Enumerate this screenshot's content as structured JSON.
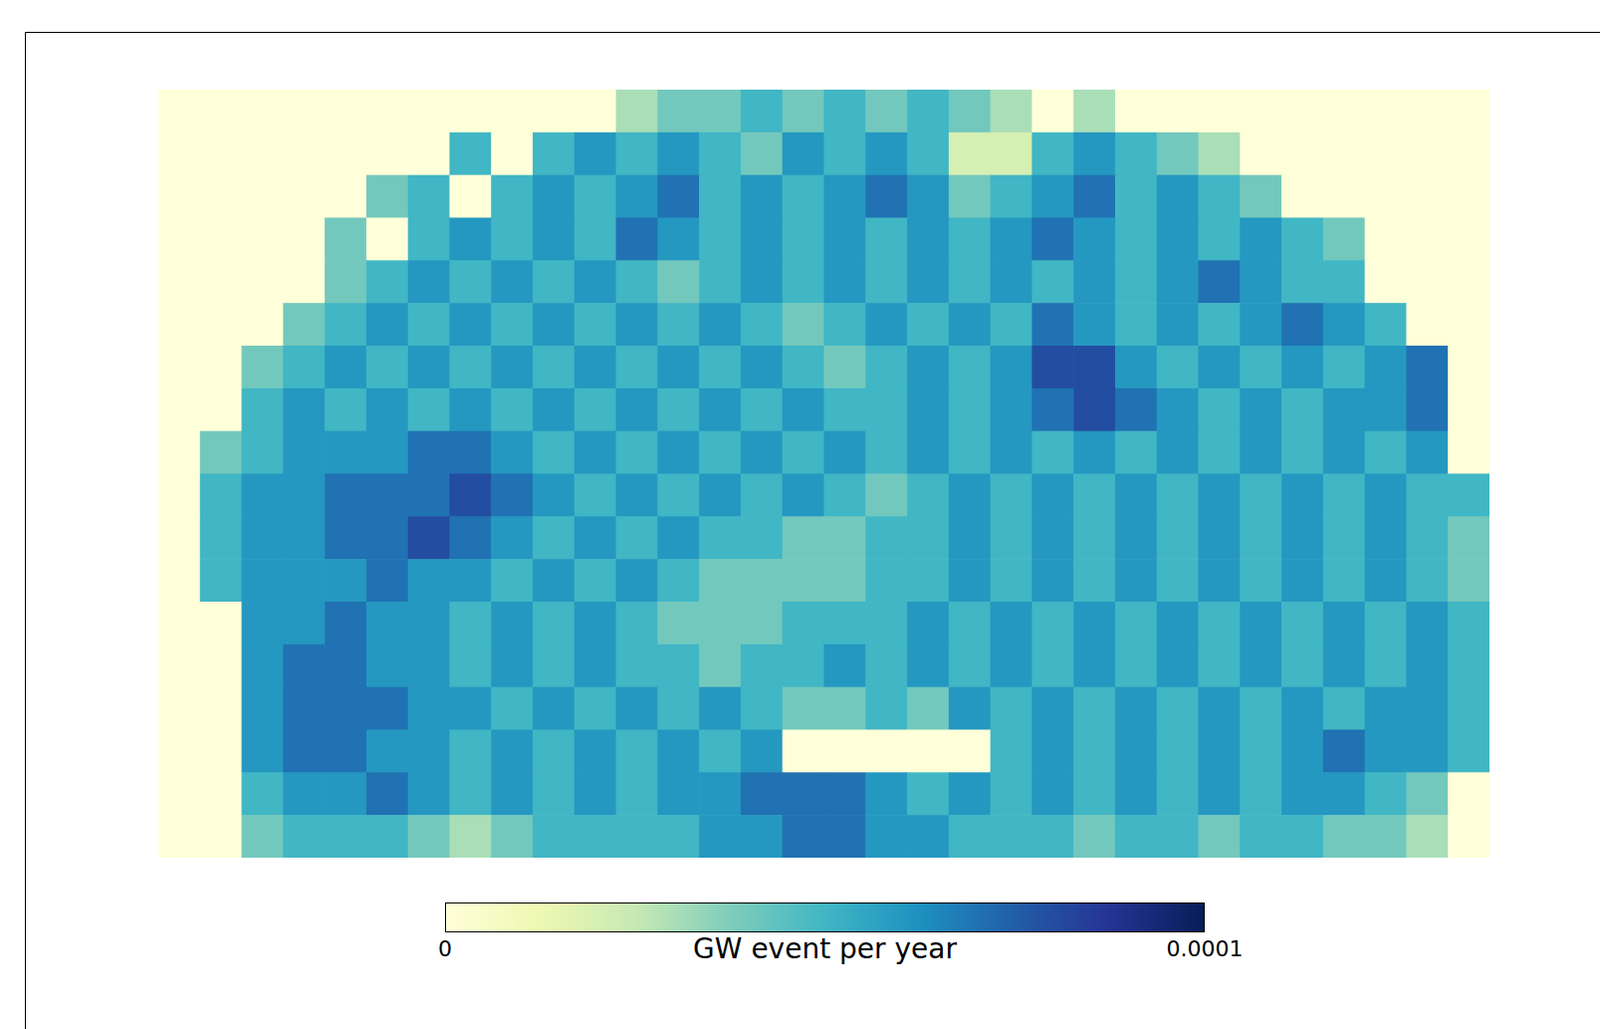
{
  "chart_data": {
    "type": "heatmap",
    "cells": [
      [
        0,
        0,
        0,
        0,
        0,
        0,
        0,
        0,
        0,
        0,
        0,
        3e-05,
        4e-05,
        4e-05,
        5e-05,
        4e-05,
        5e-05,
        4e-05,
        5e-05,
        4e-05,
        3e-05,
        0,
        3e-05,
        0,
        0,
        0,
        0,
        0,
        0,
        0,
        0,
        0
      ],
      [
        0,
        0,
        0,
        0,
        0,
        0,
        0,
        5e-05,
        0,
        5e-05,
        6e-05,
        5e-05,
        6e-05,
        5e-05,
        4e-05,
        6e-05,
        5e-05,
        6e-05,
        5e-05,
        2e-05,
        2e-05,
        5e-05,
        6e-05,
        5e-05,
        4e-05,
        3e-05,
        0,
        0,
        0,
        0,
        0,
        0
      ],
      [
        0,
        0,
        0,
        0,
        0,
        4e-05,
        5e-05,
        0,
        5e-05,
        6e-05,
        5e-05,
        6e-05,
        7e-05,
        5e-05,
        6e-05,
        5e-05,
        6e-05,
        7e-05,
        6e-05,
        4e-05,
        5e-05,
        6e-05,
        7e-05,
        5e-05,
        6e-05,
        5e-05,
        4e-05,
        0,
        0,
        0,
        0,
        0
      ],
      [
        0,
        0,
        0,
        0,
        4e-05,
        0,
        5e-05,
        6e-05,
        5e-05,
        6e-05,
        5e-05,
        7e-05,
        6e-05,
        5e-05,
        6e-05,
        5e-05,
        6e-05,
        5e-05,
        6e-05,
        5e-05,
        6e-05,
        7e-05,
        6e-05,
        5e-05,
        6e-05,
        5e-05,
        6e-05,
        5e-05,
        4e-05,
        0,
        0,
        0
      ],
      [
        0,
        0,
        0,
        0,
        4e-05,
        5e-05,
        6e-05,
        5e-05,
        6e-05,
        5e-05,
        6e-05,
        5e-05,
        4e-05,
        5e-05,
        6e-05,
        5e-05,
        6e-05,
        5e-05,
        6e-05,
        5e-05,
        6e-05,
        5e-05,
        6e-05,
        5e-05,
        6e-05,
        7e-05,
        6e-05,
        5e-05,
        5e-05,
        0,
        0,
        0
      ],
      [
        0,
        0,
        0,
        4e-05,
        5e-05,
        6e-05,
        5e-05,
        6e-05,
        5e-05,
        6e-05,
        5e-05,
        6e-05,
        5e-05,
        6e-05,
        5e-05,
        4e-05,
        5e-05,
        6e-05,
        5e-05,
        6e-05,
        5e-05,
        7e-05,
        6e-05,
        5e-05,
        6e-05,
        5e-05,
        6e-05,
        7e-05,
        6e-05,
        5e-05,
        0,
        0
      ],
      [
        0,
        0,
        4e-05,
        5e-05,
        6e-05,
        5e-05,
        6e-05,
        5e-05,
        6e-05,
        5e-05,
        6e-05,
        5e-05,
        6e-05,
        5e-05,
        6e-05,
        5e-05,
        4e-05,
        5e-05,
        6e-05,
        5e-05,
        6e-05,
        8e-05,
        8e-05,
        6e-05,
        5e-05,
        6e-05,
        5e-05,
        6e-05,
        5e-05,
        6e-05,
        7e-05,
        0
      ],
      [
        0,
        0,
        5e-05,
        6e-05,
        5e-05,
        6e-05,
        5e-05,
        6e-05,
        5e-05,
        6e-05,
        5e-05,
        6e-05,
        5e-05,
        6e-05,
        5e-05,
        6e-05,
        5e-05,
        5e-05,
        6e-05,
        5e-05,
        6e-05,
        7e-05,
        8e-05,
        7e-05,
        6e-05,
        5e-05,
        6e-05,
        5e-05,
        6e-05,
        6e-05,
        7e-05,
        0
      ],
      [
        0,
        4e-05,
        5e-05,
        6e-05,
        6e-05,
        6e-05,
        7e-05,
        7e-05,
        6e-05,
        5e-05,
        6e-05,
        5e-05,
        6e-05,
        5e-05,
        6e-05,
        5e-05,
        6e-05,
        5e-05,
        6e-05,
        5e-05,
        6e-05,
        5e-05,
        6e-05,
        5e-05,
        6e-05,
        5e-05,
        6e-05,
        5e-05,
        6e-05,
        5e-05,
        6e-05,
        0
      ],
      [
        0,
        5e-05,
        6e-05,
        6e-05,
        7e-05,
        7e-05,
        7e-05,
        8e-05,
        7e-05,
        6e-05,
        5e-05,
        6e-05,
        5e-05,
        6e-05,
        5e-05,
        6e-05,
        5e-05,
        4e-05,
        5e-05,
        6e-05,
        5e-05,
        6e-05,
        5e-05,
        6e-05,
        5e-05,
        6e-05,
        5e-05,
        6e-05,
        5e-05,
        6e-05,
        5e-05,
        5e-05
      ],
      [
        0,
        5e-05,
        6e-05,
        6e-05,
        7e-05,
        7e-05,
        8e-05,
        7e-05,
        6e-05,
        5e-05,
        6e-05,
        5e-05,
        6e-05,
        5e-05,
        5e-05,
        4e-05,
        4e-05,
        5e-05,
        5e-05,
        6e-05,
        5e-05,
        6e-05,
        5e-05,
        6e-05,
        5e-05,
        6e-05,
        5e-05,
        6e-05,
        5e-05,
        6e-05,
        5e-05,
        4e-05
      ],
      [
        0,
        5e-05,
        6e-05,
        6e-05,
        6e-05,
        7e-05,
        6e-05,
        6e-05,
        5e-05,
        6e-05,
        5e-05,
        6e-05,
        5e-05,
        4e-05,
        4e-05,
        4e-05,
        4e-05,
        5e-05,
        5e-05,
        6e-05,
        5e-05,
        6e-05,
        5e-05,
        6e-05,
        5e-05,
        6e-05,
        5e-05,
        6e-05,
        5e-05,
        6e-05,
        5e-05,
        4e-05
      ],
      [
        0,
        0,
        6e-05,
        6e-05,
        7e-05,
        6e-05,
        6e-05,
        5e-05,
        6e-05,
        5e-05,
        6e-05,
        5e-05,
        4e-05,
        4e-05,
        4e-05,
        5e-05,
        5e-05,
        5e-05,
        6e-05,
        5e-05,
        6e-05,
        5e-05,
        6e-05,
        5e-05,
        6e-05,
        5e-05,
        6e-05,
        5e-05,
        6e-05,
        5e-05,
        6e-05,
        5e-05
      ],
      [
        0,
        0,
        6e-05,
        7e-05,
        7e-05,
        6e-05,
        6e-05,
        5e-05,
        6e-05,
        5e-05,
        6e-05,
        5e-05,
        5e-05,
        4e-05,
        5e-05,
        5e-05,
        6e-05,
        5e-05,
        6e-05,
        5e-05,
        6e-05,
        5e-05,
        6e-05,
        5e-05,
        6e-05,
        5e-05,
        6e-05,
        5e-05,
        6e-05,
        5e-05,
        6e-05,
        5e-05
      ],
      [
        0,
        0,
        6e-05,
        7e-05,
        7e-05,
        7e-05,
        6e-05,
        6e-05,
        5e-05,
        6e-05,
        5e-05,
        6e-05,
        5e-05,
        6e-05,
        5e-05,
        4e-05,
        4e-05,
        5e-05,
        4e-05,
        6e-05,
        5e-05,
        6e-05,
        5e-05,
        6e-05,
        5e-05,
        6e-05,
        5e-05,
        6e-05,
        5e-05,
        6e-05,
        6e-05,
        5e-05
      ],
      [
        0,
        0,
        6e-05,
        7e-05,
        7e-05,
        6e-05,
        6e-05,
        5e-05,
        6e-05,
        5e-05,
        6e-05,
        5e-05,
        6e-05,
        5e-05,
        6e-05,
        0,
        0,
        0,
        0,
        0,
        5e-05,
        6e-05,
        5e-05,
        6e-05,
        5e-05,
        6e-05,
        5e-05,
        6e-05,
        7e-05,
        6e-05,
        6e-05,
        5e-05
      ],
      [
        0,
        0,
        5e-05,
        6e-05,
        6e-05,
        7e-05,
        6e-05,
        5e-05,
        6e-05,
        5e-05,
        6e-05,
        5e-05,
        6e-05,
        6e-05,
        7e-05,
        7e-05,
        7e-05,
        6e-05,
        5e-05,
        6e-05,
        5e-05,
        6e-05,
        5e-05,
        6e-05,
        5e-05,
        6e-05,
        5e-05,
        6e-05,
        6e-05,
        5e-05,
        4e-05,
        0
      ],
      [
        0,
        0,
        4e-05,
        5e-05,
        5e-05,
        5e-05,
        4e-05,
        3e-05,
        4e-05,
        5e-05,
        5e-05,
        5e-05,
        5e-05,
        6e-05,
        6e-05,
        7e-05,
        7e-05,
        6e-05,
        6e-05,
        5e-05,
        5e-05,
        5e-05,
        4e-05,
        5e-05,
        5e-05,
        4e-05,
        5e-05,
        5e-05,
        4e-05,
        4e-05,
        3e-05,
        0
      ]
    ],
    "colorbar": {
      "range": [
        0,
        0.0001
      ],
      "ticks": [
        0,
        0.0001
      ],
      "label": "GW event per year"
    },
    "tick_labels": false
  }
}
